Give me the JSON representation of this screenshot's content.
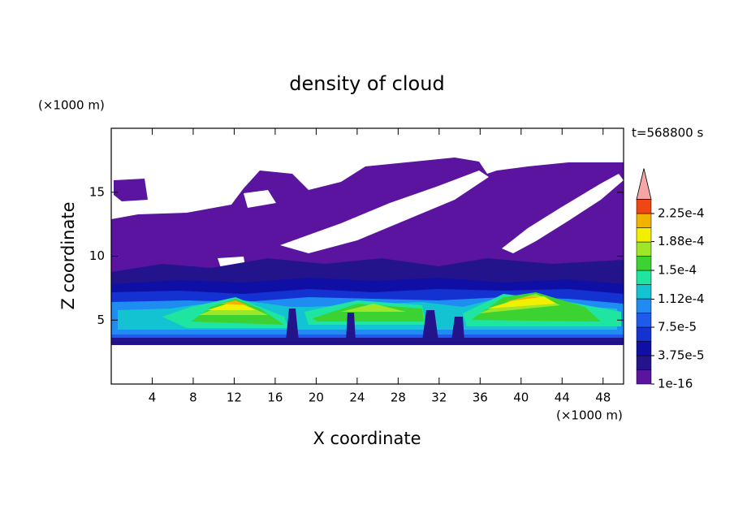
{
  "chart_data": {
    "type": "contour",
    "title": "density of cloud",
    "x_label": "X coordinate",
    "y_label": "Z coordinate",
    "x_unit": "(×1000 m)",
    "y_unit": "(×1000 m)",
    "time_label": "t=568800 s",
    "xlim": [
      0,
      50
    ],
    "ylim": [
      0,
      20
    ],
    "xticks": [
      4,
      8,
      12,
      16,
      20,
      24,
      28,
      32,
      36,
      40,
      44,
      48
    ],
    "yticks": [
      5,
      10,
      15
    ],
    "colorbar": {
      "ticks": [
        1e-16,
        {
          "value": 3.75e-05,
          "label": "3.75e-5"
        },
        {
          "value": 7.5e-05,
          "label": "7.5e-5"
        },
        {
          "value": 0.000112,
          "label": "1.12e-4"
        },
        {
          "value": 0.00015,
          "label": "1.5e-4"
        },
        {
          "value": 0.000188,
          "label": "1.88e-4"
        },
        {
          "value": 0.000225,
          "label": "2.25e-4"
        }
      ],
      "colors": [
        "#5a14a0",
        "#23148c",
        "#0f0fa5",
        "#1432d2",
        "#1e5aeb",
        "#1e8cf0",
        "#14c3d2",
        "#1ee6a0",
        "#3cd232",
        "#a0e628",
        "#f0f000",
        "#f0b400",
        "#f04614",
        "#f5a5a5"
      ]
    }
  }
}
